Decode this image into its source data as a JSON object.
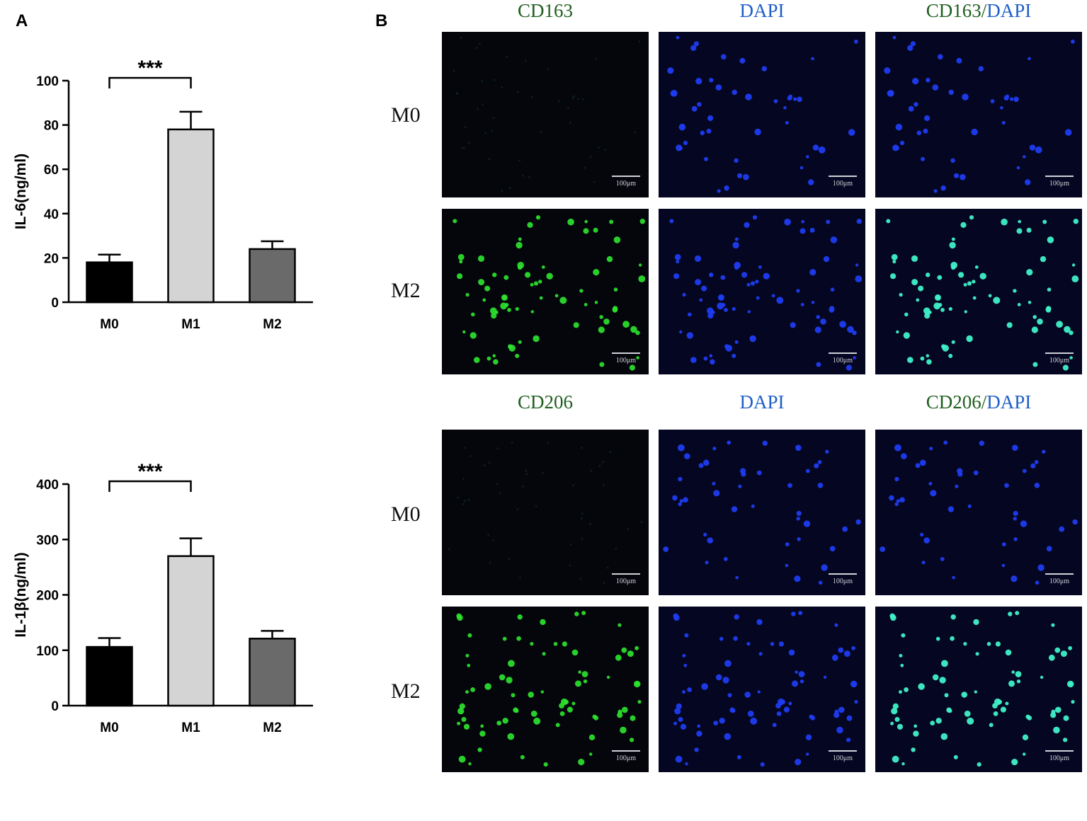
{
  "panels": {
    "a_label": "A",
    "b_label": "B"
  },
  "chart_data": [
    {
      "type": "bar",
      "categories": [
        "M0",
        "M1",
        "M2"
      ],
      "values": [
        18,
        78,
        24
      ],
      "errors": [
        3.5,
        8,
        3.5
      ],
      "ylabel": "IL-6(ng/ml)",
      "ylim": [
        0,
        100
      ],
      "yticks": [
        0,
        20,
        40,
        60,
        80,
        100
      ],
      "bar_colors": [
        "#000000",
        "#d4d4d4",
        "#6a6a6a"
      ],
      "significance": {
        "from": "M0",
        "to": "M1",
        "label": "***"
      }
    },
    {
      "type": "bar",
      "categories": [
        "M0",
        "M1",
        "M2"
      ],
      "values": [
        106,
        270,
        121
      ],
      "errors": [
        16,
        32,
        14
      ],
      "ylabel": "IL-1β(ng/ml)",
      "ylim": [
        0,
        400
      ],
      "yticks": [
        0,
        100,
        200,
        300,
        400
      ],
      "bar_colors": [
        "#000000",
        "#d4d4d4",
        "#6a6a6a"
      ],
      "significance": {
        "from": "M0",
        "to": "M1",
        "label": "***"
      }
    }
  ],
  "micrographs": {
    "top": {
      "headers": [
        {
          "marker": "CD163",
          "dapi": ""
        },
        {
          "marker": "",
          "dapi": "DAPI"
        },
        {
          "marker": "CD163/",
          "dapi": "DAPI"
        }
      ],
      "rows": [
        "M0",
        "M2"
      ]
    },
    "bottom": {
      "headers": [
        {
          "marker": "CD206",
          "dapi": ""
        },
        {
          "marker": "",
          "dapi": "DAPI"
        },
        {
          "marker": "CD206/",
          "dapi": "DAPI"
        }
      ],
      "rows": [
        "M0",
        "M2"
      ]
    },
    "scale_label": "100μm",
    "colors": {
      "marker": "#2ee62e",
      "dapi": "#1e3cf0",
      "merge": "#3ff0c8"
    }
  }
}
